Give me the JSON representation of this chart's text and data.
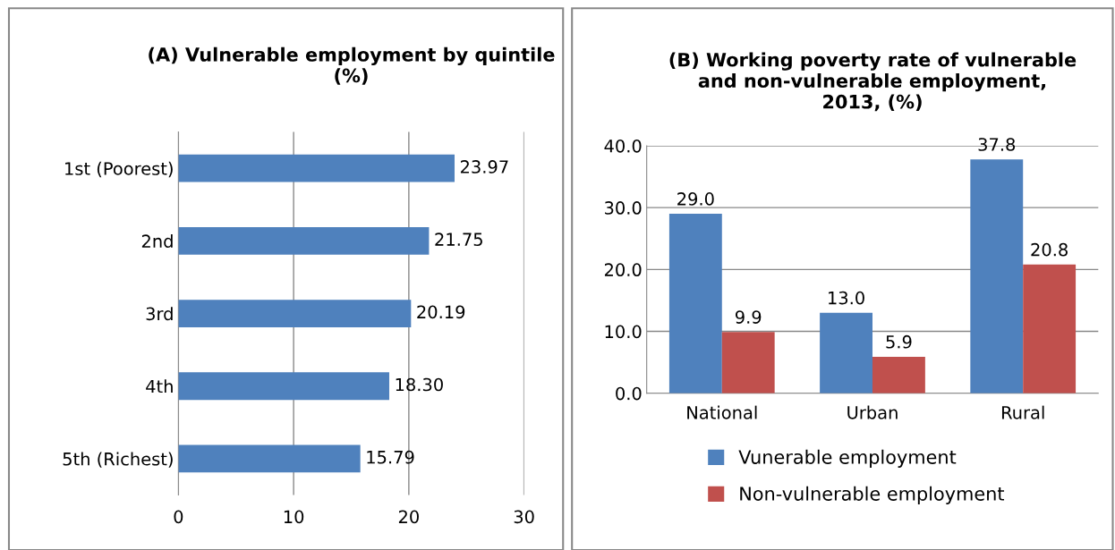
{
  "chart_data": [
    {
      "type": "bar",
      "orientation": "horizontal",
      "title": "(A) Vulnerable employment by quintile\n(%)",
      "categories": [
        "1st (Poorest)",
        "2nd",
        "3rd",
        "4th",
        "5th (Richest)"
      ],
      "series": [
        {
          "color": "#4f81bd",
          "values": [
            23.97,
            21.75,
            20.19,
            18.3,
            15.79
          ],
          "value_labels": [
            "23.97",
            "21.75",
            "20.19",
            "18.30",
            "15.79"
          ]
        }
      ],
      "xlim": [
        0,
        30
      ],
      "xticks": [
        0,
        10,
        20,
        30
      ],
      "grid": "x",
      "legend": false
    },
    {
      "type": "bar",
      "title": "(B) Working poverty rate of vulnerable\nand non-vulnerable employment,\n2013, (%)",
      "categories": [
        "National",
        "Urban",
        "Rural"
      ],
      "series": [
        {
          "name": "Vunerable employment",
          "color": "#4f81bd",
          "values": [
            29.0,
            13.0,
            37.8
          ],
          "value_labels": [
            "29.0",
            "13.0",
            "37.8"
          ]
        },
        {
          "name": "Non-vulnerable employment",
          "color": "#c0504d",
          "values": [
            9.9,
            5.9,
            20.8
          ],
          "value_labels": [
            "9.9",
            "5.9",
            "20.8"
          ]
        }
      ],
      "ylim": [
        0,
        40
      ],
      "yticks": [
        {
          "value": 0,
          "label": "0.0"
        },
        {
          "value": 10,
          "label": "10.0"
        },
        {
          "value": 20,
          "label": "20.0"
        },
        {
          "value": 30,
          "label": "30.0"
        },
        {
          "value": 40,
          "label": "40.0"
        }
      ],
      "grid": "y",
      "legend": "bottom"
    }
  ]
}
